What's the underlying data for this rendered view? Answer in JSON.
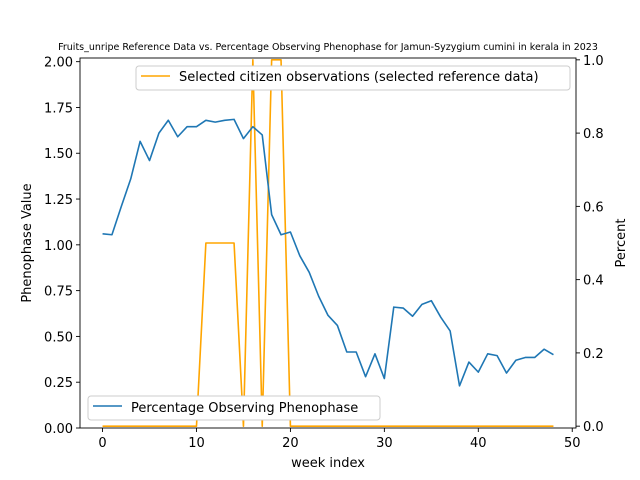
{
  "chart_data": {
    "type": "line",
    "title": "Fruits_unripe Reference Data vs. Percentage Observing Phenophase for Jamun-Syzygium cumini in kerala in 2023",
    "xlabel": "week index",
    "ylabel_left": "Phenophase Value",
    "ylabel_right": "Percent",
    "xlim": [
      -2.4,
      50.4
    ],
    "ylim_left": [
      0,
      2.02
    ],
    "ylim_right": [
      -0.005,
      1.005
    ],
    "x_ticks": [
      0,
      10,
      20,
      30,
      40,
      50
    ],
    "y_ticks_left": [
      0.0,
      0.25,
      0.5,
      0.75,
      1.0,
      1.25,
      1.5,
      1.75,
      2.0
    ],
    "y_ticks_right": [
      0.0,
      0.2,
      0.4,
      0.6,
      0.8,
      1.0
    ],
    "series": [
      {
        "name": "Percentage Observing Phenophase",
        "axis": "left",
        "color": "#1f77b4",
        "x": [
          0,
          1,
          2,
          3,
          4,
          5,
          6,
          7,
          8,
          9,
          10,
          11,
          12,
          13,
          14,
          15,
          16,
          17,
          18,
          19,
          20,
          21,
          22,
          23,
          24,
          25,
          26,
          27,
          28,
          29,
          30,
          31,
          32,
          33,
          34,
          35,
          36,
          37,
          38,
          39,
          40,
          41,
          42,
          43,
          44,
          45,
          46,
          47,
          48
        ],
        "values": [
          1.06,
          1.055,
          1.21,
          1.36,
          1.565,
          1.46,
          1.61,
          1.68,
          1.59,
          1.645,
          1.645,
          1.68,
          1.67,
          1.68,
          1.685,
          1.58,
          1.645,
          1.6,
          1.165,
          1.055,
          1.07,
          0.94,
          0.85,
          0.72,
          0.615,
          0.56,
          0.415,
          0.415,
          0.28,
          0.405,
          0.27,
          0.66,
          0.655,
          0.61,
          0.675,
          0.695,
          0.605,
          0.53,
          0.23,
          0.36,
          0.305,
          0.405,
          0.395,
          0.3,
          0.37,
          0.385,
          0.385,
          0.43,
          0.4
        ]
      },
      {
        "name": "Selected citizen observations (selected reference data)",
        "axis": "right",
        "color": "#ffa500",
        "x": [
          0,
          1,
          2,
          3,
          4,
          5,
          6,
          7,
          8,
          9,
          10,
          11,
          12,
          13,
          14,
          15,
          16,
          17,
          18,
          19,
          20,
          21,
          22,
          23,
          24,
          25,
          26,
          27,
          28,
          29,
          30,
          31,
          32,
          33,
          34,
          35,
          36,
          37,
          38,
          39,
          40,
          41,
          42,
          43,
          44,
          45,
          46,
          47,
          48
        ],
        "values": [
          0,
          0,
          0,
          0,
          0,
          0,
          0,
          0,
          0,
          0,
          0,
          0.5,
          0.5,
          0.5,
          0.5,
          0,
          1,
          0,
          1,
          1,
          0,
          0,
          0,
          0,
          0,
          0,
          0,
          0,
          0,
          0,
          0,
          0,
          0,
          0,
          0,
          0,
          0,
          0,
          0,
          0,
          0,
          0,
          0,
          0,
          0,
          0,
          0,
          0,
          0
        ]
      }
    ],
    "legend_left_position": "lower-left",
    "legend_right_position": "upper-right",
    "grid": false
  }
}
